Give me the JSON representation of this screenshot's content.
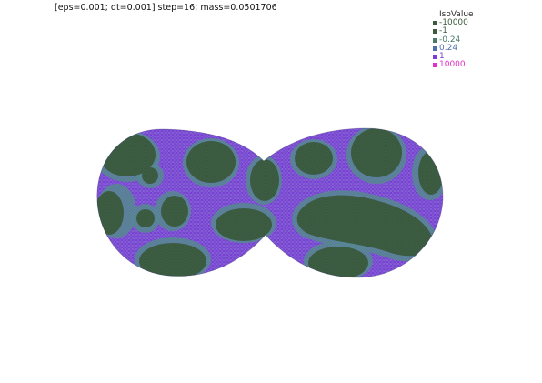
{
  "title": "[eps=0.001; dt=0.001]  step=16; mass=0.0501706",
  "legend": {
    "title": "IsoValue",
    "entries": [
      {
        "label": "-10000",
        "color": "#3c5a3c"
      },
      {
        "label": "-1",
        "color": "#3c5a3c"
      },
      {
        "label": "-0.24",
        "color": "#4a7a6a"
      },
      {
        "label": "0.24",
        "color": "#4d6fb0"
      },
      {
        "label": "1",
        "color": "#7a3fd0"
      },
      {
        "label": "10000",
        "color": "#e030c8"
      }
    ]
  },
  "colors": {
    "phase_minus": "#3d5e43",
    "interface": "#5a8a98",
    "phase_plus": "#7c42d8"
  }
}
